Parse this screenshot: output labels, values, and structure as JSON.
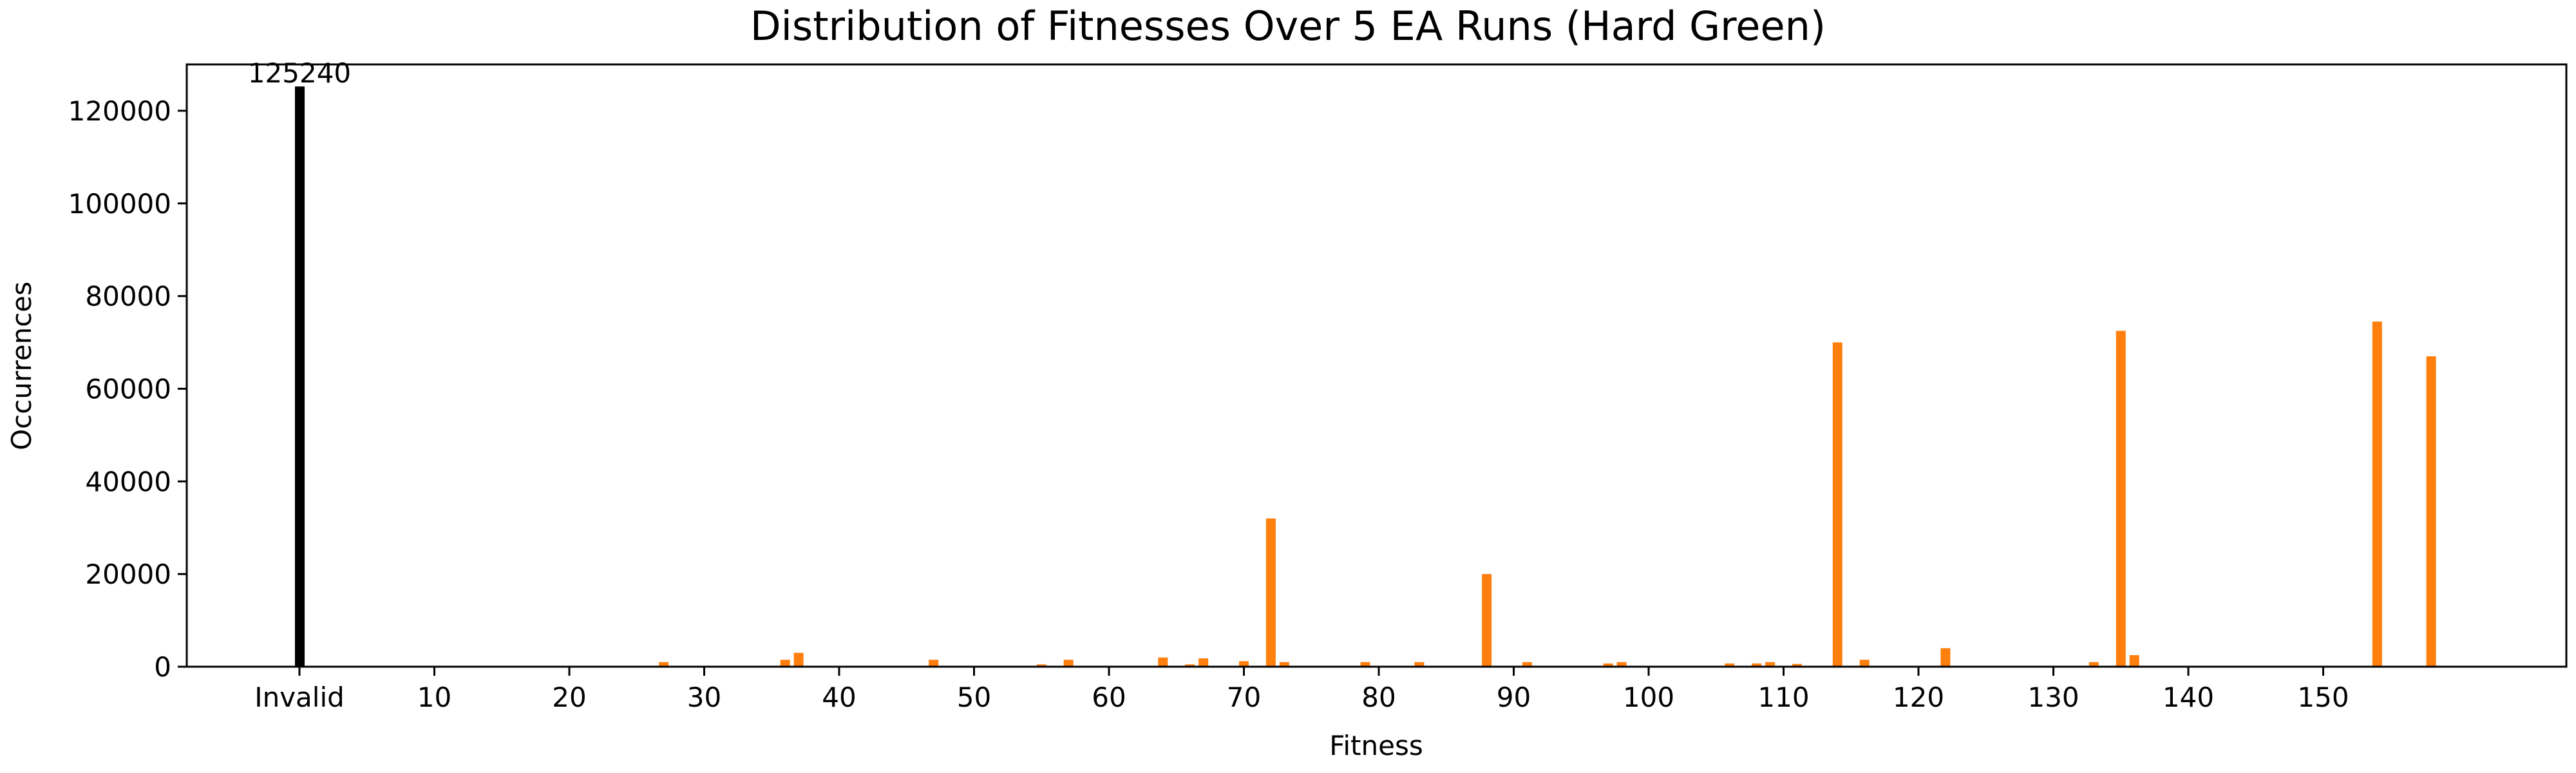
{
  "chart_data": {
    "type": "bar",
    "title": "Distribution of Fitnesses Over 5 EA Runs (Hard Green)",
    "xlabel": "Fitness",
    "ylabel": "Occurrences",
    "ylim": [
      0,
      130000
    ],
    "yticks": [
      0,
      20000,
      40000,
      60000,
      80000,
      100000,
      120000
    ],
    "xticks": [
      {
        "value": 0,
        "label": "Invalid"
      },
      {
        "value": 10,
        "label": "10"
      },
      {
        "value": 20,
        "label": "20"
      },
      {
        "value": 30,
        "label": "30"
      },
      {
        "value": 40,
        "label": "40"
      },
      {
        "value": 50,
        "label": "50"
      },
      {
        "value": 60,
        "label": "60"
      },
      {
        "value": 70,
        "label": "70"
      },
      {
        "value": 80,
        "label": "80"
      },
      {
        "value": 90,
        "label": "90"
      },
      {
        "value": 100,
        "label": "100"
      },
      {
        "value": 110,
        "label": "110"
      },
      {
        "value": 120,
        "label": "120"
      },
      {
        "value": 130,
        "label": "130"
      },
      {
        "value": 140,
        "label": "140"
      },
      {
        "value": 150,
        "label": "150"
      }
    ],
    "grid": false,
    "invalid_bar": {
      "label": "Invalid",
      "value": 125240,
      "color": "#000000"
    },
    "valid_color": "#ff7f0e",
    "x": [
      27,
      36,
      37,
      47,
      55,
      57,
      64,
      66,
      67,
      70,
      72,
      73,
      79,
      83,
      88,
      91,
      97,
      98,
      106,
      108,
      109,
      111,
      114,
      116,
      122,
      133,
      135,
      136,
      154,
      158
    ],
    "values": [
      1000,
      1500,
      3000,
      1500,
      500,
      1500,
      2000,
      500,
      1800,
      1200,
      32000,
      1000,
      1000,
      1000,
      20000,
      1000,
      700,
      1000,
      700,
      700,
      1000,
      600,
      70000,
      1500,
      4000,
      1000,
      72500,
      2500,
      74500,
      67000
    ],
    "annotations": [
      "125240"
    ]
  }
}
